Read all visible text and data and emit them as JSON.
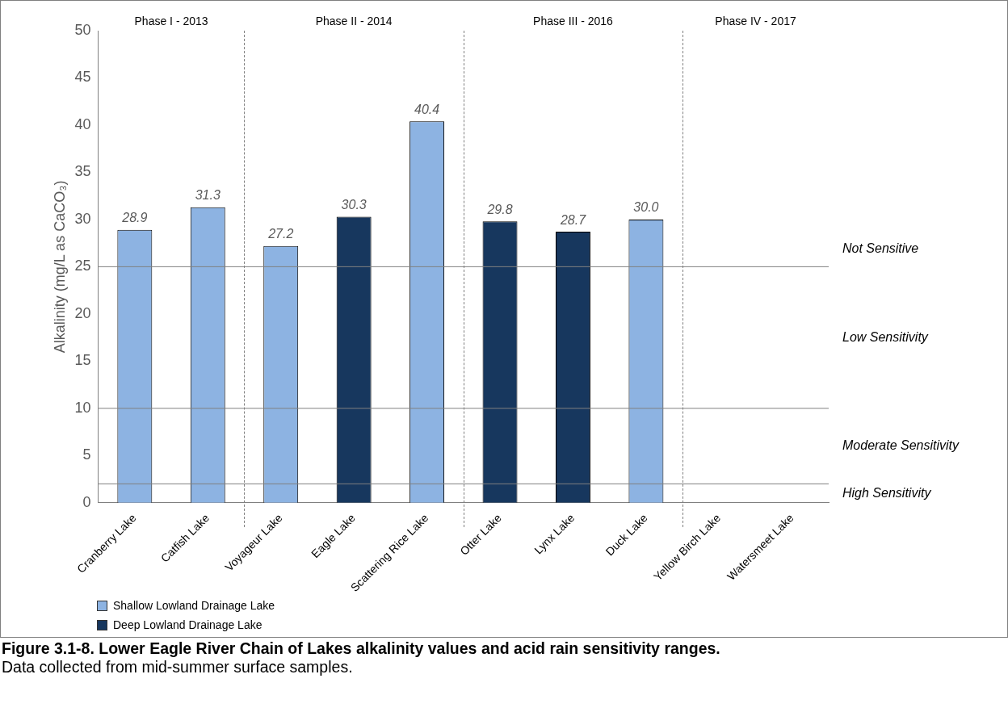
{
  "chart_data": {
    "type": "bar",
    "title": "Figure 3.1-8.  Lower Eagle River Chain of Lakes alkalinity values and acid rain sensitivity ranges.",
    "subtitle": "Data collected from mid-summer surface samples.",
    "ylabel": "Alkalinity (mg/L as CaCO₃)",
    "categories": [
      "Cranberry Lake",
      "Catfish Lake",
      "Voyageur Lake",
      "Eagle Lake",
      "Scattering Rice Lake",
      "Otter Lake",
      "Lynx Lake",
      "Duck Lake",
      "Yellow Birch Lake",
      "Watersmeet Lake"
    ],
    "series": [
      {
        "name": "Shallow Lowland Drainage Lake",
        "color": "#8db3e2",
        "values": [
          28.9,
          31.3,
          27.2,
          null,
          40.4,
          null,
          null,
          30.0,
          null,
          null
        ],
        "value_labels": [
          "28.9",
          "31.3",
          "27.2",
          null,
          "40.4",
          null,
          null,
          "30.0",
          null,
          null
        ]
      },
      {
        "name": "Deep Lowland Drainage Lake",
        "color": "#17375e",
        "values": [
          null,
          null,
          null,
          30.3,
          null,
          29.8,
          28.7,
          null,
          null,
          null
        ],
        "value_labels": [
          null,
          null,
          null,
          "30.3",
          null,
          "29.8",
          "28.7",
          null,
          null,
          null
        ]
      }
    ],
    "ylim": [
      0,
      50
    ],
    "yticks": [
      0,
      5,
      10,
      15,
      20,
      25,
      30,
      35,
      40,
      45,
      50
    ],
    "grid": false,
    "legend": "bottom left",
    "ref_lines": [
      {
        "axis": "y",
        "value": 25,
        "color": "#808080"
      },
      {
        "axis": "y",
        "value": 10,
        "color": "#808080"
      },
      {
        "axis": "y",
        "value": 2,
        "color": "#808080"
      }
    ],
    "annotations": [
      "Phase I - 2013",
      "Phase II - 2014",
      "Phase III - 2016",
      "Phase IV - 2017",
      "Not Sensitive",
      "Low Sensitivity",
      "Moderate Sensitivity",
      "High Sensitivity"
    ]
  }
}
